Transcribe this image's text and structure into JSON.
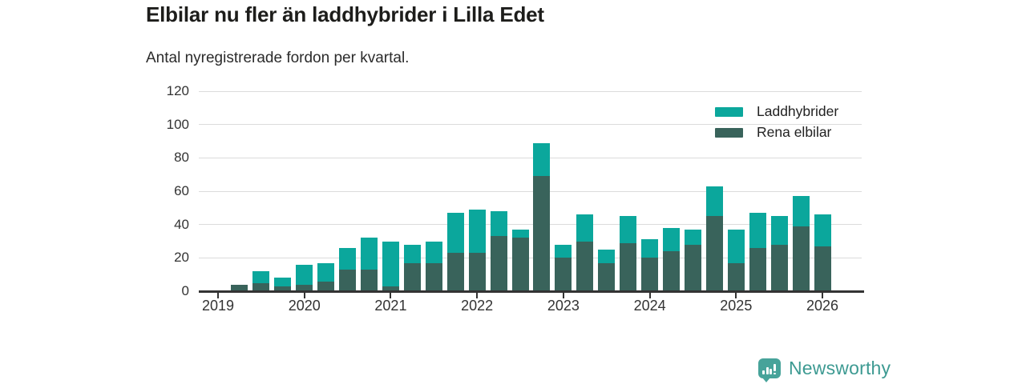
{
  "title": "Elbilar nu fler än laddhybrider i Lilla Edet",
  "subtitle": "Antal nyregistrerade fordon per kvartal.",
  "colors": {
    "laddhybrider": "#0ba79c",
    "rena_elbilar": "#39635b",
    "grid": "#dcdcdc",
    "axis": "#333333",
    "logo_badge": "#47a39a",
    "logo_text": "#3d9a92"
  },
  "legend": {
    "items": [
      {
        "label": "Laddhybrider",
        "color": "#0ba79c"
      },
      {
        "label": "Rena elbilar",
        "color": "#39635b"
      }
    ]
  },
  "branding": {
    "name": "Newsworthy",
    "icon": "bar-chart-badge-icon"
  },
  "chart_data": {
    "type": "bar",
    "stacked": true,
    "title": "Elbilar nu fler än laddhybrider i Lilla Edet",
    "subtitle": "Antal nyregistrerade fordon per kvartal.",
    "xlabel": "",
    "ylabel": "",
    "categories": [
      "2019 Q1",
      "2019 Q2",
      "2019 Q3",
      "2019 Q4",
      "2020 Q1",
      "2020 Q2",
      "2020 Q3",
      "2020 Q4",
      "2021 Q1",
      "2021 Q2",
      "2021 Q3",
      "2021 Q4",
      "2022 Q1",
      "2022 Q2",
      "2022 Q3",
      "2022 Q4",
      "2023 Q1",
      "2023 Q2",
      "2023 Q3",
      "2023 Q4",
      "2024 Q1",
      "2024 Q2",
      "2024 Q3",
      "2024 Q4",
      "2025 Q1",
      "2025 Q2",
      "2025 Q3",
      "2025 Q4",
      "2026 Q1"
    ],
    "series": [
      {
        "name": "Rena elbilar",
        "values": [
          0,
          4,
          5,
          3,
          4,
          6,
          13,
          13,
          3,
          17,
          17,
          23,
          23,
          33,
          32,
          69,
          20,
          30,
          17,
          29,
          20,
          24,
          28,
          45,
          17,
          26,
          28,
          39,
          27
        ]
      },
      {
        "name": "Laddhybrider",
        "values": [
          0,
          0,
          7,
          5,
          12,
          11,
          13,
          19,
          27,
          11,
          13,
          24,
          26,
          15,
          5,
          20,
          8,
          16,
          8,
          16,
          11,
          14,
          9,
          18,
          20,
          21,
          17,
          18,
          19
        ]
      }
    ],
    "totals": [
      0,
      4,
      12,
      8,
      16,
      17,
      26,
      32,
      30,
      28,
      30,
      47,
      49,
      48,
      37,
      89,
      28,
      46,
      25,
      45,
      31,
      38,
      37,
      63,
      37,
      47,
      45,
      57,
      46
    ],
    "x_tick_labels": [
      "2019",
      "2020",
      "2021",
      "2022",
      "2023",
      "2024",
      "2025",
      "2026"
    ],
    "x_ticks_every_n": 4,
    "y_ticks": [
      0,
      20,
      40,
      60,
      80,
      100,
      120
    ],
    "ylim": [
      0,
      120
    ],
    "grid": true,
    "legend_position": "top-right"
  }
}
